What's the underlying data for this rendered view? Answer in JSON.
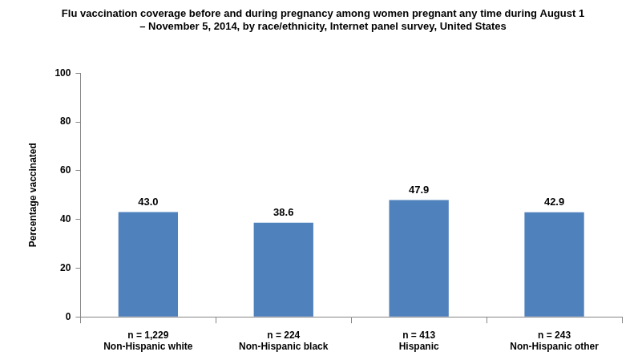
{
  "chart_data": {
    "type": "bar",
    "title": [
      "Flu vaccination coverage before and during pregnancy among women pregnant any time during August 1",
      "– November 5, 2014, by race/ethnicity, Internet panel survey, United States"
    ],
    "y_label": "Percentage vaccinated",
    "categories": [
      [
        "n = 1,229",
        "Non-Hispanic white"
      ],
      [
        "n = 224",
        "Non-Hispanic black"
      ],
      [
        "n = 413",
        "Hispanic"
      ],
      [
        "n = 243",
        "Non-Hispanic other"
      ]
    ],
    "values": [
      43.0,
      38.6,
      47.9,
      42.9
    ],
    "value_labels": [
      "43.0",
      "38.6",
      "47.9",
      "42.9"
    ],
    "data_labels": true,
    "color": "#4f81bd",
    "ylim": [
      0,
      100
    ],
    "yticks": [
      0,
      20,
      40,
      60,
      80,
      100
    ],
    "grid": false
  }
}
